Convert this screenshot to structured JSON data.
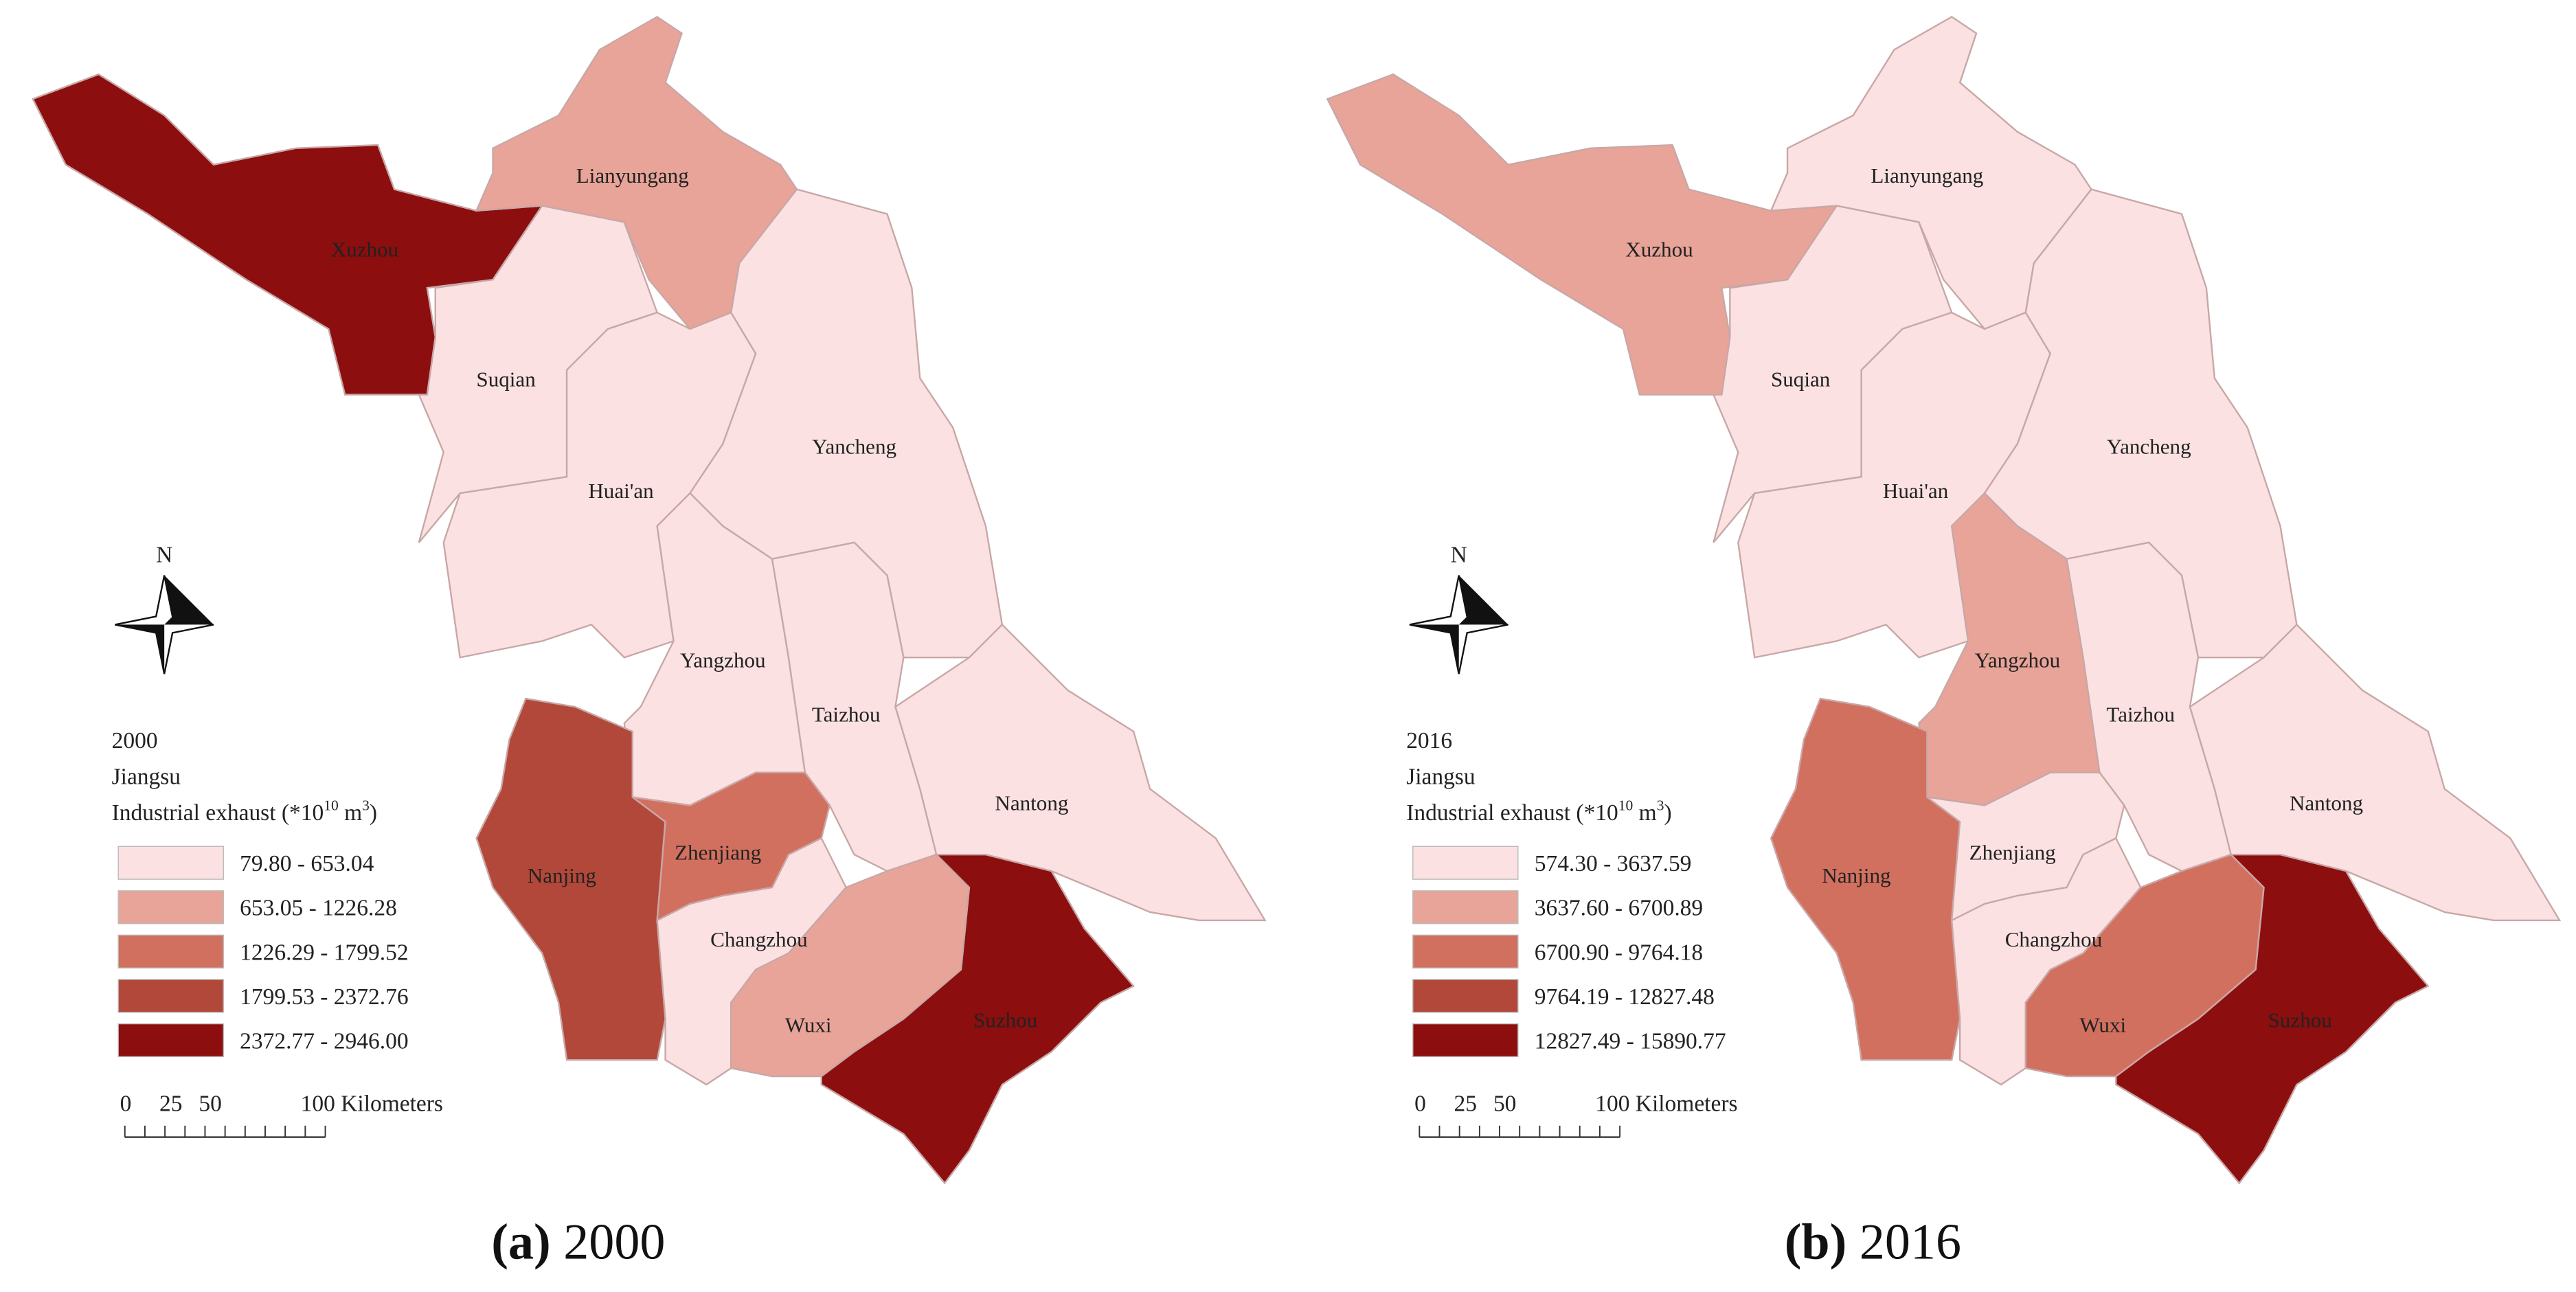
{
  "maps": [
    {
      "caption": {
        "label": "(a)",
        "text": "2000"
      },
      "legend": {
        "year": "2000",
        "region": "Jiangsu",
        "title": [
          "Industrial exhaust (*10",
          "10",
          " m",
          "3",
          ")"
        ],
        "classes": [
          {
            "label": "79.80 - 653.04",
            "color": "#fbe1e1"
          },
          {
            "label": "653.05 - 1226.28",
            "color": "#e8a498"
          },
          {
            "label": "1226.29 - 1799.52",
            "color": "#d2705f"
          },
          {
            "label": "1799.53 - 2372.76",
            "color": "#b2483a"
          },
          {
            "label": "2372.77 - 2946.00",
            "color": "#8c0e0e"
          }
        ]
      },
      "north": "N",
      "scale": [
        "0",
        "25",
        "50",
        "100 Kilometers"
      ],
      "cities": [
        {
          "name": "Xuzhou",
          "color": "#8c0e0e"
        },
        {
          "name": "Lianyungang",
          "color": "#e8a498"
        },
        {
          "name": "Suqian",
          "color": "#fbe1e1"
        },
        {
          "name": "Huai'an",
          "color": "#fbe1e1"
        },
        {
          "name": "Yancheng",
          "color": "#fbe1e1"
        },
        {
          "name": "Yangzhou",
          "color": "#fbe1e1"
        },
        {
          "name": "Taizhou",
          "color": "#fbe1e1"
        },
        {
          "name": "Nantong",
          "color": "#fbe1e1"
        },
        {
          "name": "Nanjing",
          "color": "#b2483a"
        },
        {
          "name": "Zhenjiang",
          "color": "#d2705f"
        },
        {
          "name": "Changzhou",
          "color": "#fbe1e1"
        },
        {
          "name": "Wuxi",
          "color": "#e8a498"
        },
        {
          "name": "Suzhou",
          "color": "#8c0e0e"
        }
      ]
    },
    {
      "caption": {
        "label": "(b)",
        "text": "2016"
      },
      "legend": {
        "year": "2016",
        "region": "Jiangsu",
        "title": [
          "Industrial exhaust (*10",
          "10",
          " m",
          "3",
          ")"
        ],
        "classes": [
          {
            "label": "574.30 - 3637.59",
            "color": "#fbe1e1"
          },
          {
            "label": "3637.60 - 6700.89",
            "color": "#e8a498"
          },
          {
            "label": "6700.90 - 9764.18",
            "color": "#d2705f"
          },
          {
            "label": "9764.19 - 12827.48",
            "color": "#b2483a"
          },
          {
            "label": "12827.49 - 15890.77",
            "color": "#8c0e0e"
          }
        ]
      },
      "north": "N",
      "scale": [
        "0",
        "25",
        "50",
        "100 Kilometers"
      ],
      "cities": [
        {
          "name": "Xuzhou",
          "color": "#e8a498"
        },
        {
          "name": "Lianyungang",
          "color": "#fbe1e1"
        },
        {
          "name": "Suqian",
          "color": "#fbe1e1"
        },
        {
          "name": "Huai'an",
          "color": "#fbe1e1"
        },
        {
          "name": "Yancheng",
          "color": "#fbe1e1"
        },
        {
          "name": "Yangzhou",
          "color": "#e8a498"
        },
        {
          "name": "Taizhou",
          "color": "#fbe1e1"
        },
        {
          "name": "Nantong",
          "color": "#fbe1e1"
        },
        {
          "name": "Nanjing",
          "color": "#d2705f"
        },
        {
          "name": "Zhenjiang",
          "color": "#fbe1e1"
        },
        {
          "name": "Changzhou",
          "color": "#fbe1e1"
        },
        {
          "name": "Wuxi",
          "color": "#d2705f"
        },
        {
          "name": "Suzhou",
          "color": "#8c0e0e"
        }
      ]
    }
  ]
}
